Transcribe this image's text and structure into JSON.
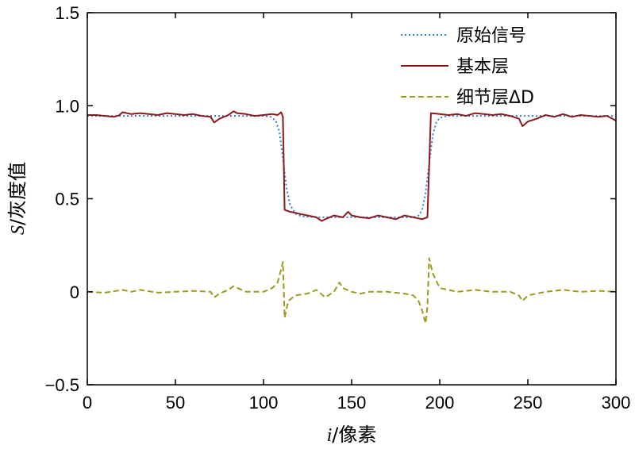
{
  "chart_data": {
    "type": "line",
    "xlabel": {
      "var": "i",
      "rest": "/像素"
    },
    "ylabel": {
      "var": "S",
      "rest": "/灰度值"
    },
    "xlim": [
      0,
      300
    ],
    "ylim": [
      -0.5,
      1.5
    ],
    "xticks": [
      0,
      50,
      100,
      150,
      200,
      250,
      300
    ],
    "yticks": [
      {
        "value": -0.5,
        "label": "−0.5"
      },
      {
        "value": 0,
        "label": "0"
      },
      {
        "value": 0.5,
        "label": "0.5"
      },
      {
        "value": 1.0,
        "label": "1.0"
      },
      {
        "value": 1.5,
        "label": "1.5"
      }
    ],
    "grid": false,
    "legend_position": "top-right",
    "series": [
      {
        "name": "原始信号",
        "color": "#2f7fd8",
        "style": "dotted",
        "x": [
          0,
          100,
          104,
          107,
          109,
          111,
          113,
          115,
          118,
          122,
          130,
          185,
          188,
          190,
          192,
          194,
          196,
          198,
          200,
          205,
          300
        ],
        "y": [
          0.945,
          0.945,
          0.94,
          0.92,
          0.86,
          0.72,
          0.56,
          0.47,
          0.42,
          0.405,
          0.4,
          0.4,
          0.41,
          0.44,
          0.53,
          0.69,
          0.84,
          0.91,
          0.935,
          0.945,
          0.945
        ]
      },
      {
        "name": "基本层",
        "color": "#8b1a1a",
        "style": "solid",
        "x": [
          0,
          5,
          10,
          15,
          18,
          20,
          25,
          30,
          35,
          40,
          45,
          50,
          55,
          60,
          65,
          70,
          72,
          75,
          80,
          83,
          85,
          90,
          95,
          100,
          105,
          108,
          110,
          111,
          112,
          115,
          120,
          125,
          130,
          133,
          135,
          140,
          145,
          148,
          150,
          155,
          160,
          165,
          170,
          175,
          180,
          185,
          190,
          193,
          194,
          195,
          200,
          205,
          210,
          215,
          220,
          225,
          230,
          235,
          240,
          245,
          247,
          250,
          255,
          260,
          265,
          270,
          275,
          280,
          285,
          290,
          295,
          300
        ],
        "y": [
          0.95,
          0.95,
          0.945,
          0.94,
          0.948,
          0.965,
          0.955,
          0.96,
          0.955,
          0.95,
          0.96,
          0.955,
          0.95,
          0.955,
          0.945,
          0.94,
          0.91,
          0.93,
          0.95,
          0.97,
          0.96,
          0.955,
          0.945,
          0.95,
          0.955,
          0.95,
          0.965,
          0.94,
          0.44,
          0.43,
          0.42,
          0.41,
          0.4,
          0.38,
          0.39,
          0.41,
          0.4,
          0.43,
          0.41,
          0.4,
          0.395,
          0.41,
          0.4,
          0.39,
          0.41,
          0.4,
          0.39,
          0.4,
          0.68,
          0.96,
          0.955,
          0.95,
          0.955,
          0.945,
          0.96,
          0.955,
          0.95,
          0.955,
          0.945,
          0.93,
          0.89,
          0.915,
          0.93,
          0.95,
          0.94,
          0.955,
          0.94,
          0.95,
          0.945,
          0.94,
          0.945,
          0.92
        ]
      },
      {
        "name": "细节层ΔD",
        "color": "#9b9b1e",
        "style": "dashed",
        "x": [
          0,
          10,
          20,
          25,
          30,
          40,
          50,
          60,
          70,
          72,
          75,
          80,
          83,
          90,
          100,
          105,
          108,
          110,
          111,
          112,
          114,
          118,
          125,
          130,
          135,
          140,
          143,
          145,
          150,
          155,
          160,
          170,
          180,
          185,
          188,
          190,
          192,
          193,
          194,
          196,
          200,
          210,
          220,
          230,
          240,
          245,
          247,
          250,
          260,
          270,
          280,
          290,
          300
        ],
        "y": [
          0.0,
          -0.005,
          0.01,
          0.0,
          0.01,
          -0.005,
          0.0,
          0.005,
          0.0,
          -0.03,
          -0.01,
          0.01,
          0.03,
          0.0,
          0.0,
          0.02,
          0.05,
          0.12,
          0.16,
          -0.14,
          -0.05,
          -0.02,
          -0.01,
          0.01,
          -0.03,
          0.0,
          0.05,
          0.02,
          0.0,
          -0.01,
          0.0,
          0.0,
          -0.01,
          -0.02,
          -0.05,
          -0.1,
          -0.17,
          -0.08,
          0.18,
          0.1,
          0.02,
          0.0,
          0.01,
          0.0,
          0.0,
          -0.02,
          -0.05,
          -0.02,
          0.0,
          0.01,
          0.0,
          0.005,
          0.0
        ]
      }
    ]
  }
}
